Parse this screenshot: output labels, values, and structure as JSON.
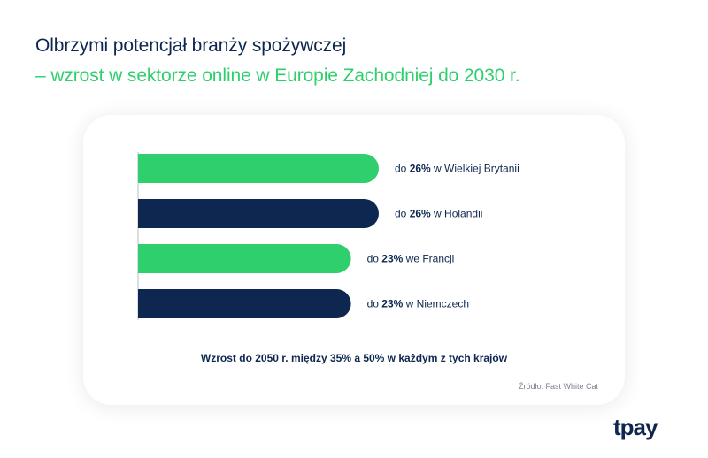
{
  "header": {
    "title": "Olbrzymi potencjał branży spożywczej",
    "subtitle": "– wzrost w sektorze online w Europie Zachodniej do 2030 r."
  },
  "chart_data": {
    "type": "bar",
    "orientation": "horizontal",
    "title": "Olbrzymi potencjał branży spożywczej – wzrost w sektorze online w Europie Zachodniej do 2030 r.",
    "categories": [
      "Wielka Brytania",
      "Holandia",
      "Francja",
      "Niemcy"
    ],
    "values": [
      26,
      26,
      23,
      23
    ],
    "unit": "%",
    "xlim": [
      0,
      30
    ],
    "labels": [
      {
        "prefix": "do ",
        "value": "26%",
        "suffix": " w Wielkiej Brytanii"
      },
      {
        "prefix": "do ",
        "value": "26%",
        "suffix": " w Holandii"
      },
      {
        "prefix": "do ",
        "value": "23%",
        "suffix": " we Francji"
      },
      {
        "prefix": "do ",
        "value": "23%",
        "suffix": " w Niemczech"
      }
    ],
    "colors": [
      "#2fcf6e",
      "#0e2750",
      "#2fcf6e",
      "#0e2750"
    ],
    "grid": false,
    "legend": "none"
  },
  "note": "Wzrost do 2050 r. między 35% a 50% w każdym z tych krajów",
  "source": "Źródło: Fast White Cat",
  "brand": "tpay"
}
